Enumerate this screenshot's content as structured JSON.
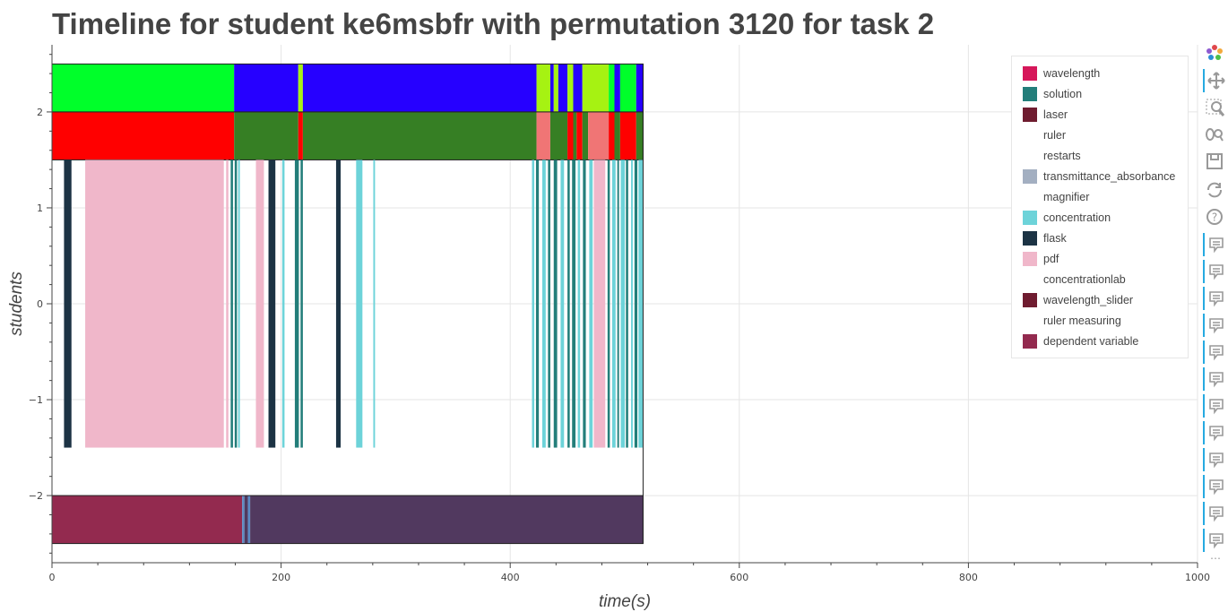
{
  "chart_data": {
    "type": "timeline",
    "title": "Timeline for student ke6msbfr with permutation 3120 for task 2",
    "xlabel": "time(s)",
    "ylabel": "students",
    "xlim": [
      0,
      1000
    ],
    "ylim": [
      -2.7,
      2.7
    ],
    "x_ticks": [
      0,
      200,
      400,
      600,
      800,
      1000
    ],
    "y_ticks": [
      2,
      1,
      0,
      -1,
      -2
    ],
    "y_tick_labels": [
      "2",
      "1",
      "0",
      "−1",
      "−2"
    ],
    "grid": true,
    "legend_position": "top-right",
    "legend": [
      {
        "label": "wavelength",
        "color": "#d6175a"
      },
      {
        "label": "solution",
        "color": "#237e7a"
      },
      {
        "label": "laser",
        "color": "#6f1c30"
      },
      {
        "label": "ruler",
        "color": ""
      },
      {
        "label": "restarts",
        "color": ""
      },
      {
        "label": "transmittance_absorbance",
        "color": "#a3afc1"
      },
      {
        "label": "magnifier",
        "color": ""
      },
      {
        "label": "concentration",
        "color": "#6dd3d9"
      },
      {
        "label": "flask",
        "color": "#1c3344"
      },
      {
        "label": "pdf",
        "color": "#f0b7ca"
      },
      {
        "label": "concentrationlab",
        "color": ""
      },
      {
        "label": "wavelength_slider",
        "color": "#6f1c30"
      },
      {
        "label": "ruler measuring",
        "color": ""
      },
      {
        "label": "dependent variable",
        "color": "#932a4f"
      }
    ],
    "rows": {
      "top_band": {
        "y_range": [
          2,
          2.5
        ],
        "segments": [
          {
            "x0": 0,
            "x1": 159,
            "color": "#00ff2a"
          },
          {
            "x0": 159,
            "x1": 215,
            "color": "#2600ff"
          },
          {
            "x0": 215,
            "x1": 219,
            "color": "#a6f212"
          },
          {
            "x0": 219,
            "x1": 423,
            "color": "#2600ff"
          },
          {
            "x0": 423,
            "x1": 435,
            "color": "#a6f212"
          },
          {
            "x0": 435,
            "x1": 438,
            "color": "#2600ff"
          },
          {
            "x0": 438,
            "x1": 442,
            "color": "#a6f212"
          },
          {
            "x0": 442,
            "x1": 450,
            "color": "#2600ff"
          },
          {
            "x0": 450,
            "x1": 455,
            "color": "#a6f212"
          },
          {
            "x0": 455,
            "x1": 463,
            "color": "#2600ff"
          },
          {
            "x0": 463,
            "x1": 486,
            "color": "#a6f212"
          },
          {
            "x0": 486,
            "x1": 491,
            "color": "#00ff2a"
          },
          {
            "x0": 491,
            "x1": 496,
            "color": "#2600ff"
          },
          {
            "x0": 496,
            "x1": 510,
            "color": "#00ff2a"
          },
          {
            "x0": 510,
            "x1": 516,
            "color": "#2600ff"
          }
        ]
      },
      "second_band": {
        "y_range": [
          1.5,
          2
        ],
        "segments": [
          {
            "x0": 0,
            "x1": 159,
            "color": "#ff0000"
          },
          {
            "x0": 159,
            "x1": 215,
            "color": "#367f24"
          },
          {
            "x0": 215,
            "x1": 219,
            "color": "#ff0000"
          },
          {
            "x0": 219,
            "x1": 423,
            "color": "#367f24"
          },
          {
            "x0": 423,
            "x1": 435,
            "color": "#f07575"
          },
          {
            "x0": 435,
            "x1": 450,
            "color": "#367f24"
          },
          {
            "x0": 450,
            "x1": 455,
            "color": "#ff0000"
          },
          {
            "x0": 455,
            "x1": 458,
            "color": "#367f24"
          },
          {
            "x0": 458,
            "x1": 463,
            "color": "#ff0000"
          },
          {
            "x0": 463,
            "x1": 468,
            "color": "#367f24"
          },
          {
            "x0": 468,
            "x1": 486,
            "color": "#f07575"
          },
          {
            "x0": 486,
            "x1": 491,
            "color": "#ff0000"
          },
          {
            "x0": 491,
            "x1": 496,
            "color": "#367f24"
          },
          {
            "x0": 496,
            "x1": 510,
            "color": "#ff0000"
          },
          {
            "x0": 510,
            "x1": 516,
            "color": "#367f24"
          }
        ]
      },
      "event_band": {
        "y_range": [
          -1.5,
          1.5
        ],
        "segments": [
          {
            "x0": 10.5,
            "x1": 17.0,
            "color": "#1c3344"
          },
          {
            "x0": 29.0,
            "x1": 150.0,
            "color": "#f0b7ca"
          },
          {
            "x0": 152.0,
            "x1": 154.0,
            "color": "#f0b7ca"
          },
          {
            "x0": 156.0,
            "x1": 158.0,
            "color": "#237e7a"
          },
          {
            "x0": 159.5,
            "x1": 161.5,
            "color": "#237e7a"
          },
          {
            "x0": 162.5,
            "x1": 164.0,
            "color": "#6dd3d9"
          },
          {
            "x0": 178.0,
            "x1": 185.0,
            "color": "#f0b7ca"
          },
          {
            "x0": 189.0,
            "x1": 195.0,
            "color": "#1c3344"
          },
          {
            "x0": 201.0,
            "x1": 203.0,
            "color": "#6dd3d9"
          },
          {
            "x0": 212.0,
            "x1": 215.5,
            "color": "#237e7a"
          },
          {
            "x0": 217.0,
            "x1": 219.0,
            "color": "#237e7a"
          },
          {
            "x0": 248.0,
            "x1": 252.0,
            "color": "#1c3344"
          },
          {
            "x0": 265.5,
            "x1": 271.0,
            "color": "#6dd3d9"
          },
          {
            "x0": 280.5,
            "x1": 282.0,
            "color": "#6dd3d9"
          },
          {
            "x0": 419.0,
            "x1": 421.0,
            "color": "#6dd3d9"
          },
          {
            "x0": 422.5,
            "x1": 425.0,
            "color": "#237e7a"
          },
          {
            "x0": 428.0,
            "x1": 431.0,
            "color": "#6dd3d9"
          },
          {
            "x0": 433.0,
            "x1": 435.0,
            "color": "#237e7a"
          },
          {
            "x0": 438.0,
            "x1": 441.0,
            "color": "#237e7a"
          },
          {
            "x0": 444.0,
            "x1": 447.0,
            "color": "#6dd3d9"
          },
          {
            "x0": 450.0,
            "x1": 452.0,
            "color": "#237e7a"
          },
          {
            "x0": 454.0,
            "x1": 457.0,
            "color": "#237e7a"
          },
          {
            "x0": 459.0,
            "x1": 461.0,
            "color": "#6dd3d9"
          },
          {
            "x0": 463.5,
            "x1": 466.0,
            "color": "#237e7a"
          },
          {
            "x0": 469.0,
            "x1": 472.0,
            "color": "#6dd3d9"
          },
          {
            "x0": 473.0,
            "x1": 483.0,
            "color": "#f0b7ca"
          },
          {
            "x0": 485.0,
            "x1": 487.0,
            "color": "#237e7a"
          },
          {
            "x0": 489.0,
            "x1": 492.0,
            "color": "#6dd3d9"
          },
          {
            "x0": 493.5,
            "x1": 495.0,
            "color": "#237e7a"
          },
          {
            "x0": 496.5,
            "x1": 500.0,
            "color": "#6dd3d9"
          },
          {
            "x0": 501.0,
            "x1": 503.0,
            "color": "#237e7a"
          },
          {
            "x0": 505.5,
            "x1": 507.0,
            "color": "#6dd3d9"
          },
          {
            "x0": 508.5,
            "x1": 511.0,
            "color": "#237e7a"
          },
          {
            "x0": 512.0,
            "x1": 516.0,
            "color": "#6dd3d9"
          }
        ]
      },
      "bottom_band": {
        "y_range": [
          -2.5,
          -2
        ],
        "segments": [
          {
            "x0": 0,
            "x1": 166,
            "color": "#932a4f"
          },
          {
            "x0": 166,
            "x1": 168,
            "color": "#5c8ac4"
          },
          {
            "x0": 168,
            "x1": 171,
            "color": "#51395f"
          },
          {
            "x0": 171,
            "x1": 173,
            "color": "#5c8ac4"
          },
          {
            "x0": 173,
            "x1": 516,
            "color": "#51395f"
          }
        ]
      }
    }
  },
  "toolbar": [
    {
      "icon": "bokeh-logo-icon",
      "active": false
    },
    {
      "icon": "pan-icon",
      "active": true
    },
    {
      "icon": "box-zoom-icon",
      "active": false
    },
    {
      "icon": "wheel-zoom-icon",
      "active": false
    },
    {
      "icon": "save-icon",
      "active": false
    },
    {
      "icon": "reset-icon",
      "active": false
    },
    {
      "icon": "help-icon",
      "active": false
    },
    {
      "icon": "hover-icon",
      "active": true
    },
    {
      "icon": "hover-icon",
      "active": true
    },
    {
      "icon": "hover-icon",
      "active": true
    },
    {
      "icon": "hover-icon",
      "active": true
    },
    {
      "icon": "hover-icon",
      "active": true
    },
    {
      "icon": "hover-icon",
      "active": true
    },
    {
      "icon": "hover-icon",
      "active": true
    },
    {
      "icon": "hover-icon",
      "active": true
    },
    {
      "icon": "hover-icon",
      "active": true
    },
    {
      "icon": "hover-icon",
      "active": true
    },
    {
      "icon": "hover-icon",
      "active": true
    },
    {
      "icon": "hover-icon",
      "active": true
    },
    {
      "icon": "hover-icon",
      "active": true
    }
  ],
  "toolbar_more": "⋯",
  "toolbar_accent": "#26aae1"
}
